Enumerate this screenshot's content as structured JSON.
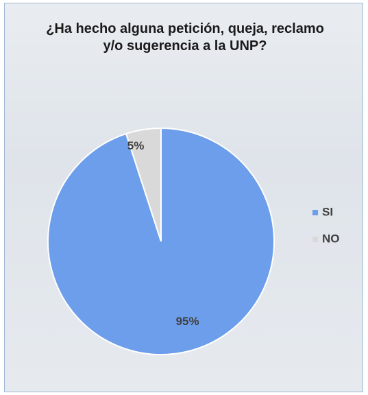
{
  "chart_data": {
    "type": "pie",
    "title": "¿Ha hecho alguna petición, queja, reclamo y/o sugerencia a la UNP?",
    "categories": [
      "SI",
      "NO"
    ],
    "values": [
      95,
      5
    ],
    "value_labels": [
      "95%",
      "5%"
    ],
    "colors": [
      "#6d9eeb",
      "#d9d9d9"
    ],
    "legend": "right"
  }
}
